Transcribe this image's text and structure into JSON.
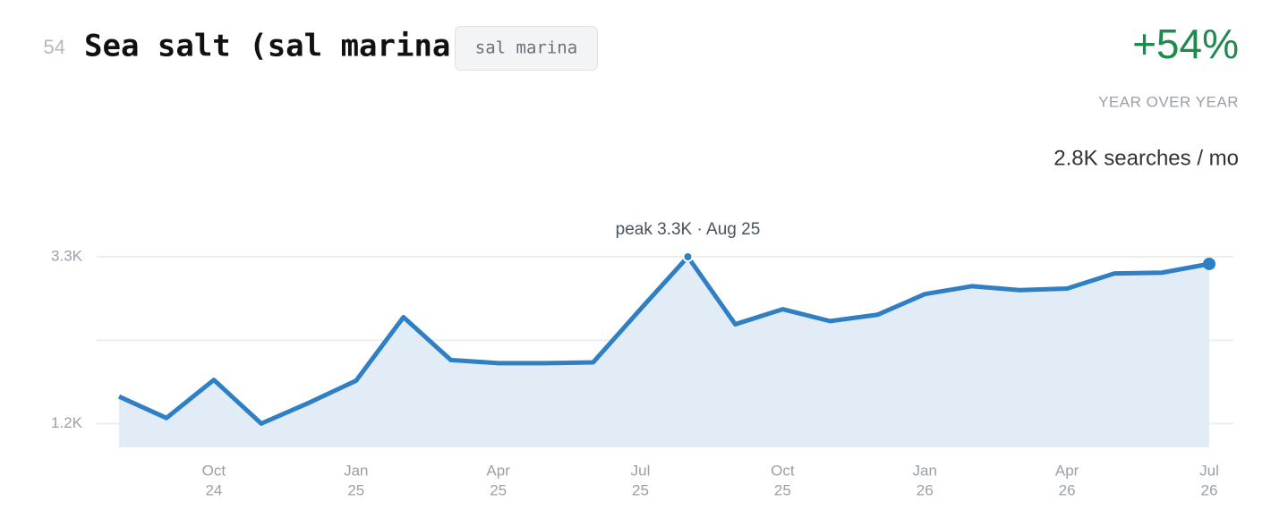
{
  "header": {
    "rank": "54",
    "title": "Sea salt (sal marina)",
    "tag": "sal marina",
    "growth": "+54%",
    "growth_label": "YEAR OVER YEAR",
    "volume": "2.8K searches / mo"
  },
  "chart_data": {
    "type": "area",
    "categories": [
      null,
      null,
      [
        "Oct",
        "24"
      ],
      null,
      null,
      [
        "Jan",
        "25"
      ],
      null,
      null,
      [
        "Apr",
        "25"
      ],
      null,
      null,
      [
        "Jul",
        "25"
      ],
      null,
      null,
      [
        "Oct",
        "25"
      ],
      null,
      null,
      [
        "Jan",
        "26"
      ],
      null,
      null,
      [
        "Apr",
        "26"
      ],
      null,
      null,
      [
        "Jul",
        "26"
      ]
    ],
    "series": [
      {
        "name": "Searches",
        "color": "#2f7fc4",
        "values": [
          1540,
          1270,
          1750,
          1200,
          1460,
          1740,
          2540,
          2000,
          1960,
          1960,
          1970,
          2640,
          3300,
          2450,
          2640,
          2490,
          2570,
          2830,
          2930,
          2880,
          2900,
          3090,
          3100,
          3210
        ]
      }
    ],
    "fill_color": "#e1ecf7",
    "ylim": [
      900,
      3300
    ],
    "yticks": [
      {
        "value": 1200,
        "label": "1.2K"
      },
      {
        "value": 2250,
        "label": null
      },
      {
        "value": 3300,
        "label": "3.3K"
      }
    ],
    "grid": true,
    "annotations": [
      {
        "text": "peak 3.3K · Aug 25",
        "index": 12
      }
    ]
  }
}
